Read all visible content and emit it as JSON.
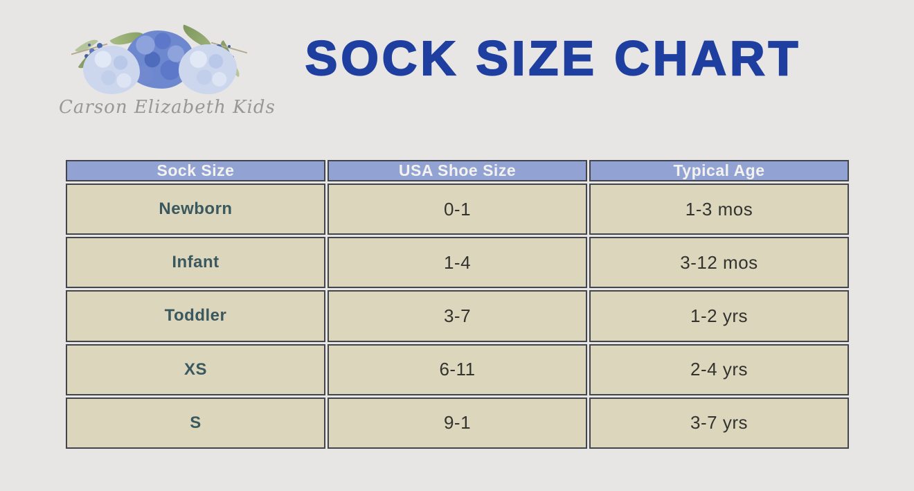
{
  "title": "SOCK SIZE CHART",
  "logo": {
    "brand": "Carson Elizabeth Kids",
    "illustration": "watercolor blue hydrangea flowers with greenery"
  },
  "table": {
    "headers": [
      "Sock Size",
      "USA Shoe Size",
      "Typical Age"
    ],
    "rows": [
      {
        "sock_size": "Newborn",
        "usa_shoe_size": "0-1",
        "typical_age": "1-3 mos"
      },
      {
        "sock_size": "Infant",
        "usa_shoe_size": "1-4",
        "typical_age": "3-12 mos"
      },
      {
        "sock_size": "Toddler",
        "usa_shoe_size": "3-7",
        "typical_age": "1-2 yrs"
      },
      {
        "sock_size": "XS",
        "usa_shoe_size": "6-11",
        "typical_age": "2-4 yrs"
      },
      {
        "sock_size": "S",
        "usa_shoe_size": "9-1",
        "typical_age": "3-7 yrs"
      }
    ]
  },
  "colors": {
    "page_bg": "#e7e6e4",
    "title_blue": "#1e3ea0",
    "header_fill": "#92a3d3",
    "header_text": "#f3f2ee",
    "row_fill": "#dcd6bd",
    "label_teal": "#3a585e",
    "value_text": "#32332e",
    "border_dark": "#43454c"
  }
}
